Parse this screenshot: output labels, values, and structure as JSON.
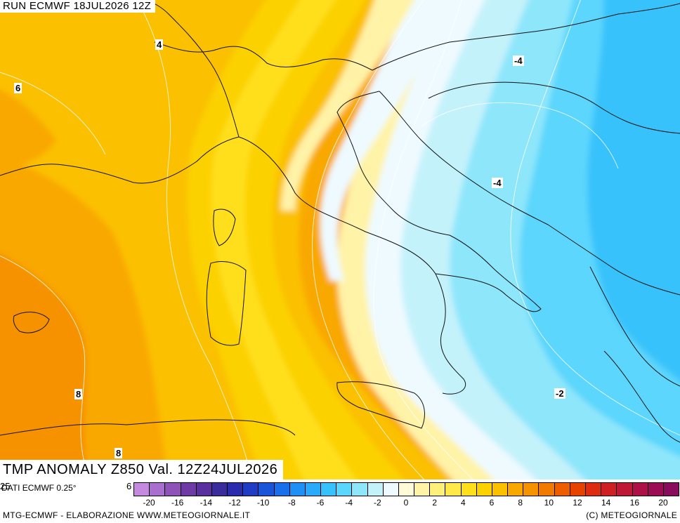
{
  "header": {
    "run": "RUN ECMWF 18JUL2026 12Z"
  },
  "title": "TMP ANOMALY Z850 Val. 12Z24JUL2026",
  "contour_labels": [
    "4",
    "6",
    "8",
    "8",
    "-4",
    "-4",
    "-2"
  ],
  "footer": {
    "dati": "DATI ECMWF 0.25°",
    "lvl_a": "25",
    "lvl_b": "6",
    "left_credit": "MTG-ECMWF - ELABORAZIONE WWW.METEOGIORNALE.IT",
    "right_credit": "(C) METEOGIORNALE"
  },
  "colorbar": {
    "colors": [
      "#c58ae0",
      "#a86fcf",
      "#8f52b8",
      "#6e3aa6",
      "#5a2fa0",
      "#3a2c9c",
      "#2a2cae",
      "#1e3dc4",
      "#1a55d9",
      "#1a70ec",
      "#2090f6",
      "#2aaafa",
      "#38c2fb",
      "#5bd6fc",
      "#8ee6fb",
      "#c4f2fb",
      "#eefaff",
      "#fffbd8",
      "#fff3a8",
      "#fff07a",
      "#ffe94a",
      "#ffdf1c",
      "#fcd100",
      "#fbc000",
      "#f9a800",
      "#f69200",
      "#f27a00",
      "#ee5e00",
      "#e84200",
      "#dd2c0f",
      "#cf1f23",
      "#bf1736",
      "#ad1147",
      "#9b0c55",
      "#8a0a5e"
    ],
    "tick_labels": [
      "-20",
      "-16",
      "-14",
      "-12",
      "-10",
      "-8",
      "-6",
      "-4",
      "-2",
      "0",
      "2",
      "4",
      "6",
      "8",
      "10",
      "12",
      "14",
      "16",
      "20"
    ]
  }
}
